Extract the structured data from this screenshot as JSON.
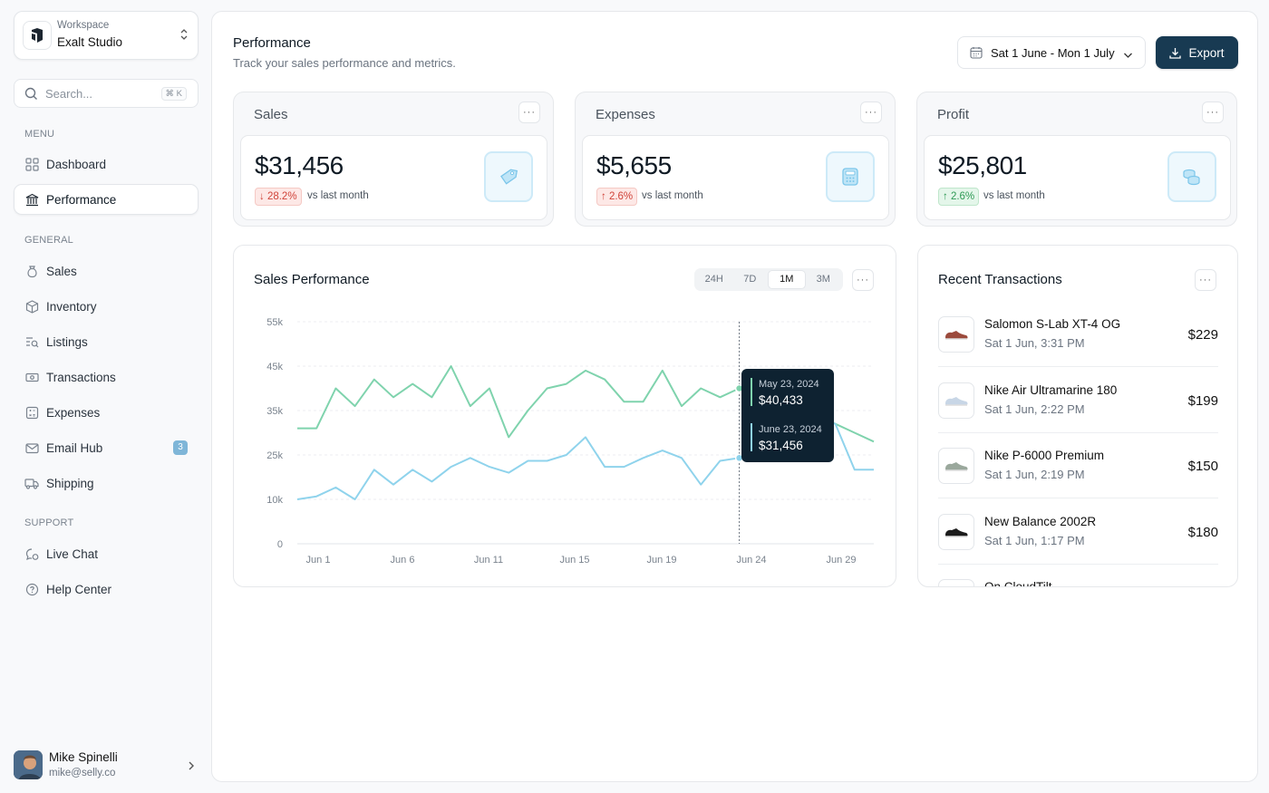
{
  "workspace": {
    "label": "Workspace",
    "name": "Exalt Studio"
  },
  "search": {
    "placeholder": "Search...",
    "shortcut": "⌘ K"
  },
  "sidebar": {
    "menu_label": "MENU",
    "menu_items": [
      {
        "label": "Dashboard",
        "icon": "grid-icon"
      },
      {
        "label": "Performance",
        "icon": "bank-icon",
        "active": true
      }
    ],
    "general_label": "GENERAL",
    "general_items": [
      {
        "label": "Sales",
        "icon": "money-bag-icon"
      },
      {
        "label": "Inventory",
        "icon": "box-icon"
      },
      {
        "label": "Listings",
        "icon": "list-search-icon"
      },
      {
        "label": "Transactions",
        "icon": "cash-icon"
      },
      {
        "label": "Expenses",
        "icon": "calculator-icon"
      },
      {
        "label": "Email Hub",
        "icon": "mail-icon",
        "badge": "3"
      },
      {
        "label": "Shipping",
        "icon": "truck-icon"
      }
    ],
    "support_label": "SUPPORT",
    "support_items": [
      {
        "label": "Live Chat",
        "icon": "chat-icon"
      },
      {
        "label": "Help Center",
        "icon": "help-icon"
      }
    ]
  },
  "user": {
    "name": "Mike Spinelli",
    "email": "mike@selly.co"
  },
  "header": {
    "title": "Performance",
    "subtitle": "Track your sales performance and metrics.",
    "date_range": "Sat 1 June - Mon 1 July",
    "export_label": "Export"
  },
  "stats": [
    {
      "title": "Sales",
      "value": "$31,456",
      "change": "↓ 28.2%",
      "trend": "down",
      "vs": "vs last month",
      "icon": "tag-icon"
    },
    {
      "title": "Expenses",
      "value": "$5,655",
      "change": "↑ 2.6%",
      "trend": "up-bad",
      "vs": "vs last month",
      "icon": "calculator-icon"
    },
    {
      "title": "Profit",
      "value": "$25,801",
      "change": "↑ 2.6%",
      "trend": "up",
      "vs": "vs last month",
      "icon": "coins-icon"
    }
  ],
  "chart_card": {
    "title": "Sales Performance",
    "ranges": [
      "24H",
      "7D",
      "1M",
      "3M"
    ],
    "active_range": "1M"
  },
  "chart_data": {
    "type": "line",
    "y_ticks": [
      "0",
      "10k",
      "25k",
      "35k",
      "45k",
      "55k"
    ],
    "x_ticks": [
      "Jun 1",
      "Jun 6",
      "Jun 11",
      "Jun 15",
      "Jun 19",
      "Jun 24",
      "Jun 29"
    ],
    "grid": true,
    "series": [
      {
        "color": "#7fd3ad",
        "values": [
          31,
          31,
          40,
          36,
          42,
          38,
          41,
          38,
          45,
          36,
          40,
          29,
          35,
          40,
          41,
          44,
          42,
          37,
          37,
          44,
          36,
          40,
          38,
          40,
          37,
          40,
          35,
          34,
          32,
          30,
          28
        ]
      },
      {
        "color": "#8fd3ec",
        "values": [
          10,
          11,
          14,
          10,
          20,
          15,
          20,
          16,
          21,
          24,
          21,
          19,
          23,
          23,
          25,
          29,
          21,
          21,
          24,
          26,
          24,
          15,
          23,
          24,
          29,
          30,
          28,
          33,
          32,
          20,
          20
        ]
      }
    ],
    "tooltip": {
      "line1_date": "May 23, 2024",
      "line1_value": "$40,433",
      "line2_date": "June 23, 2024",
      "line2_value": "$31,456"
    }
  },
  "transactions": {
    "title": "Recent Transactions",
    "items": [
      {
        "name": "Salomon S-Lab XT-4 OG",
        "date": "Sat 1 Jun, 3:31 PM",
        "price": "$229",
        "shoe": "#9b4a3c"
      },
      {
        "name": "Nike Air Ultramarine 180",
        "date": "Sat 1 Jun, 2:22 PM",
        "price": "$199",
        "shoe": "#c8d6e6"
      },
      {
        "name": "Nike P-6000 Premium",
        "date": "Sat 1 Jun, 2:19 PM",
        "price": "$150",
        "shoe": "#9aa89c"
      },
      {
        "name": "New Balance 2002R",
        "date": "Sat 1 Jun, 1:17 PM",
        "price": "$180",
        "shoe": "#1c1c1c"
      },
      {
        "name": "On CloudTilt",
        "date": "",
        "price": "",
        "shoe": "#d0d4d8"
      }
    ]
  }
}
